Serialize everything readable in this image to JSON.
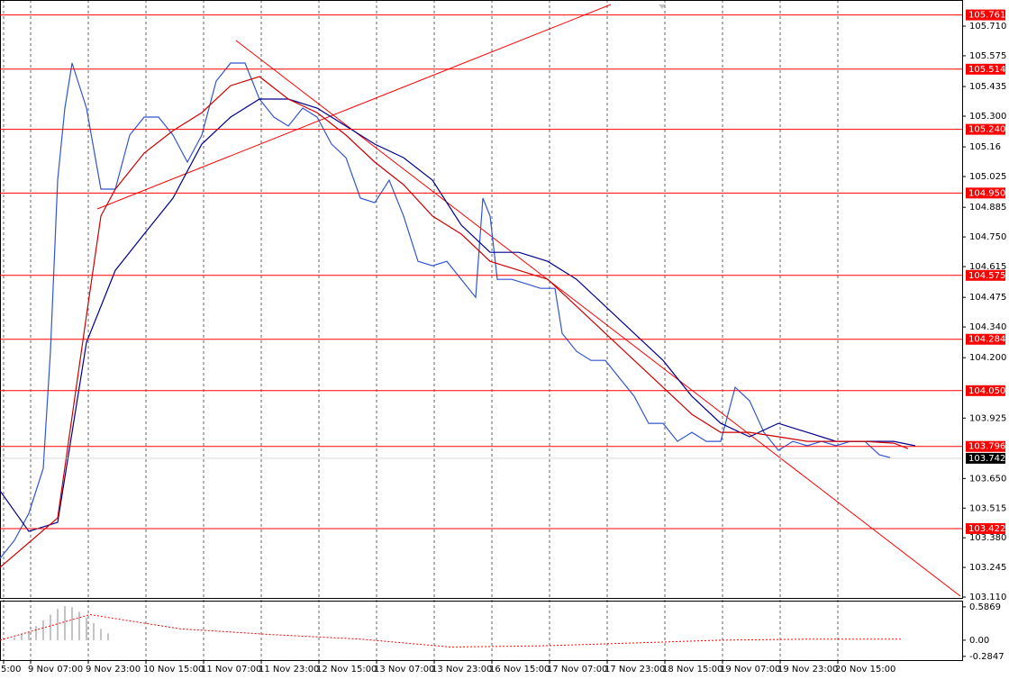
{
  "chart_data": [
    {
      "type": "line",
      "xlim": [
        0,
        267
      ],
      "ylim": [
        103.106,
        105.829
      ],
      "xticks": [
        {
          "value": 1,
          "label": "5:00"
        },
        {
          "value": 8.5,
          "label": "9 Nov 07:00"
        },
        {
          "value": 24.5,
          "label": "9 Nov 23:00"
        },
        {
          "value": 40.5,
          "label": "10 Nov 15:00"
        },
        {
          "value": 56.5,
          "label": "11 Nov 07:00"
        },
        {
          "value": 72.5,
          "label": "11 Nov 23:00"
        },
        {
          "value": 88.5,
          "label": "12 Nov 15:00"
        },
        {
          "value": 104.5,
          "label": "13 Nov 07:00"
        },
        {
          "value": 120.5,
          "label": "13 Nov 23:00"
        },
        {
          "value": 136.5,
          "label": "16 Nov 15:00"
        },
        {
          "value": 152.5,
          "label": "17 Nov 07:00"
        },
        {
          "value": 168.5,
          "label": "17 Nov 23:00"
        },
        {
          "value": 184.5,
          "label": "18 Nov 15:00"
        },
        {
          "value": 200.5,
          "label": "19 Nov 07:00"
        },
        {
          "value": 216.5,
          "label": "19 Nov 23:00"
        },
        {
          "value": 232.5,
          "label": "20 Nov 15:00"
        }
      ],
      "yticks": [
        {
          "value": 105.71,
          "label": "105.710"
        },
        105.575,
        105.435,
        {
          "value": 105.3,
          "label": "105.300"
        },
        105.16,
        105.025,
        104.885,
        {
          "value": 104.75,
          "label": "104.750"
        },
        104.615,
        104.475,
        {
          "value": 104.34,
          "label": "104.340"
        },
        {
          "value": 104.2,
          "label": "104.200"
        },
        103.925,
        {
          "value": 103.65,
          "label": "103.650"
        },
        103.515,
        {
          "value": 103.38,
          "label": "103.380"
        },
        103.245,
        {
          "value": 103.11,
          "label": "103.110"
        }
      ],
      "grid": true,
      "levels": [
        105.761,
        105.514,
        {
          "value": 105.24,
          "label": "105.240"
        },
        {
          "value": 104.95,
          "label": "104.950"
        },
        104.575,
        104.284,
        {
          "value": 104.05,
          "label": "104.050"
        },
        103.796,
        103.422
      ],
      "level_color": "#ff0000",
      "last_price": 103.742,
      "series": [
        {
          "color": "#3355cc",
          "x": [
            0,
            4,
            8,
            12,
            14,
            16,
            18,
            20,
            24,
            28,
            32,
            36,
            40,
            44,
            48,
            52,
            56,
            60,
            64,
            68,
            72,
            76,
            80,
            84,
            88,
            92,
            96,
            100,
            104,
            108,
            112,
            116,
            120,
            124,
            128,
            132,
            134,
            136,
            138,
            142,
            146,
            150,
            154,
            156,
            160,
            164,
            168,
            172,
            176,
            180,
            184,
            188,
            192,
            196,
            200,
            204,
            208,
            212,
            216,
            220,
            224,
            228,
            232,
            236,
            240,
            244,
            247
          ],
          "values": [
            103.286,
            103.368,
            103.491,
            103.696,
            104.229,
            105.009,
            105.337,
            105.542,
            105.337,
            104.968,
            104.968,
            105.214,
            105.296,
            105.296,
            105.214,
            105.091,
            105.214,
            105.46,
            105.542,
            105.542,
            105.378,
            105.296,
            105.255,
            105.337,
            105.296,
            105.173,
            105.111,
            104.927,
            104.906,
            105.009,
            104.845,
            104.639,
            104.619,
            104.639,
            104.557,
            104.475,
            104.927,
            104.845,
            104.557,
            104.557,
            104.537,
            104.516,
            104.516,
            104.311,
            104.229,
            104.188,
            104.188,
            104.106,
            104.024,
            103.901,
            103.901,
            103.819,
            103.86,
            103.819,
            103.819,
            104.065,
            104.004,
            103.86,
            103.778,
            103.819,
            103.799,
            103.819,
            103.799,
            103.819,
            103.819,
            103.758,
            103.745
          ]
        },
        {
          "color": "#00008b",
          "x": [
            0,
            8,
            16,
            24,
            32,
            40,
            48,
            56,
            64,
            72,
            80,
            88,
            96,
            104,
            112,
            120,
            128,
            136,
            144,
            152,
            160,
            168,
            176,
            184,
            192,
            200,
            208,
            216,
            224,
            232,
            240,
            248,
            254
          ],
          "values": [
            103.594,
            103.409,
            103.45,
            104.27,
            104.598,
            104.763,
            104.927,
            105.173,
            105.296,
            105.378,
            105.378,
            105.337,
            105.255,
            105.173,
            105.111,
            105.009,
            104.804,
            104.68,
            104.68,
            104.639,
            104.557,
            104.434,
            104.311,
            104.188,
            104.024,
            103.901,
            103.84,
            103.901,
            103.86,
            103.819,
            103.819,
            103.819,
            103.799
          ]
        },
        {
          "color": "#cc0000",
          "x": [
            0,
            16,
            24,
            28,
            32,
            40,
            48,
            56,
            64,
            72,
            80,
            88,
            96,
            104,
            112,
            120,
            128,
            136,
            144,
            152,
            160,
            168,
            176,
            184,
            192,
            200,
            208,
            216,
            224,
            232,
            240,
            248,
            252
          ],
          "values": [
            103.245,
            103.47,
            104.393,
            104.845,
            104.968,
            105.132,
            105.234,
            105.316,
            105.439,
            105.48,
            105.378,
            105.316,
            105.214,
            105.091,
            104.988,
            104.845,
            104.763,
            104.639,
            104.598,
            104.557,
            104.434,
            104.311,
            104.188,
            104.065,
            103.942,
            103.86,
            103.86,
            103.84,
            103.819,
            103.819,
            103.819,
            103.811,
            103.786
          ]
        }
      ]
    },
    {
      "type": "bar",
      "xlim": [
        0,
        267
      ],
      "ylim": [
        -0.35,
        0.68
      ],
      "yticks": [
        0.5869,
        {
          "value": 0,
          "label": "0.00"
        },
        -0.2847
      ],
      "color": "#b0b0b0",
      "x": [
        4,
        6,
        8,
        10,
        12,
        14,
        16,
        18,
        20,
        22,
        24,
        26,
        28,
        30
      ],
      "values": [
        0.05,
        0.1,
        0.15,
        0.25,
        0.35,
        0.45,
        0.55,
        0.6,
        0.58,
        0.5,
        0.4,
        0.3,
        0.2,
        0.12
      ],
      "line": {
        "color": "#ff0000",
        "x": [
          0,
          25,
          50,
          75,
          100,
          125,
          150,
          175,
          200,
          225,
          250
        ],
        "values": [
          0,
          0.45,
          0.2,
          0.1,
          0.02,
          -0.12,
          -0.1,
          -0.05,
          0,
          0.02,
          0.02
        ]
      }
    }
  ]
}
